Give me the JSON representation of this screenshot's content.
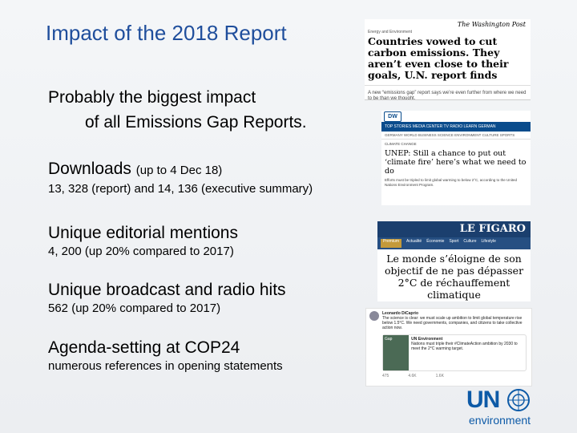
{
  "title": "Impact of the 2018 Report",
  "lines": {
    "impact_1": "Probably the biggest impact",
    "impact_2": "of all Emissions Gap Reports.",
    "downloads_label": "Downloads",
    "downloads_note": "(up to 4 Dec 18)",
    "downloads_value": "13, 328 (report)  and 14, 136 (executive summary)",
    "mentions_label": "Unique editorial mentions",
    "mentions_value": "4, 200 (up 20% compared to 2017)",
    "broadcast_label": "Unique broadcast and radio hits",
    "broadcast_value": "562 (up 20% compared to 2017)",
    "agenda_label": "Agenda-setting at COP24",
    "agenda_value": "numerous references in opening statements"
  },
  "clips": {
    "wp_masthead": "The Washington Post",
    "wp_kicker": "Energy and Environment",
    "wp_headline": "Countries vowed to cut carbon emissions. They aren’t even close to their goals, U.N. report finds",
    "wp_deck": "A new “emissions gap” report says we’re even further from where we need to be than we thought.",
    "dw_logo": "DW",
    "dw_nav": "TOP STORIES  MEDIA CENTER  TV  RADIO  LEARN GERMAN",
    "dw_sub": "GERMANY  WORLD  BUSINESS  SCIENCE  ENVIRONMENT  CULTURE  SPORTS",
    "dw_kicker": "CLIMATE CHANGE",
    "dw_headline": "UNEP: Still a chance to put out ‘climate fire’ here’s what we need to do",
    "dw_para": "Efforts must be tripled to limit global warming to below 2°C, according to the United Nations Environment Program.",
    "fig_brand": "LE FIGARO",
    "fig_menu": [
      "Premium",
      "Actualité",
      "Économie",
      "Sport",
      "Culture",
      "Lifestyle"
    ],
    "fig_headline": "Le monde s’éloigne de son objectif de ne pas dépasser 2°C de réchauffement climatique",
    "tw_name": "Leonardo DiCaprio",
    "tw_text": "The science is clear: we must scale up ambition to limit global temperature rise below 1.5°C. We need governments, companies, and citizens to take collective action now.",
    "tw_inner_name": "UN Environment",
    "tw_inner_text": "Nations must triple their #ClimateAction ambition by 2030 to meet the 2°C warming target.",
    "tw_thumb": "Gap",
    "tw_stats": [
      "475",
      "4.6K",
      "1.6K"
    ]
  },
  "logo": {
    "un": "UN",
    "env": "environment"
  }
}
